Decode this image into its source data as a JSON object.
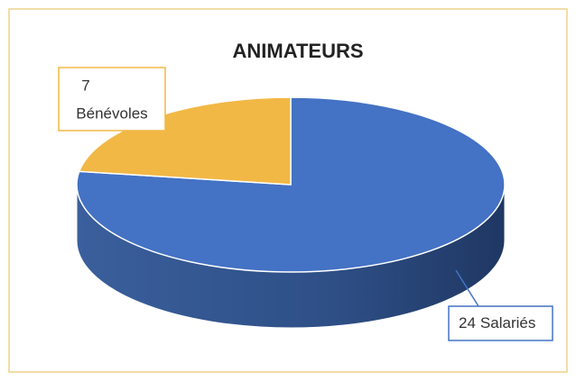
{
  "chart_data": {
    "type": "pie",
    "title": "ANIMATEURS",
    "categories": [
      "Bénévoles",
      "Salariés"
    ],
    "values": [
      7,
      24
    ],
    "colors": [
      "#f2b845",
      "#4472c4"
    ]
  }
}
